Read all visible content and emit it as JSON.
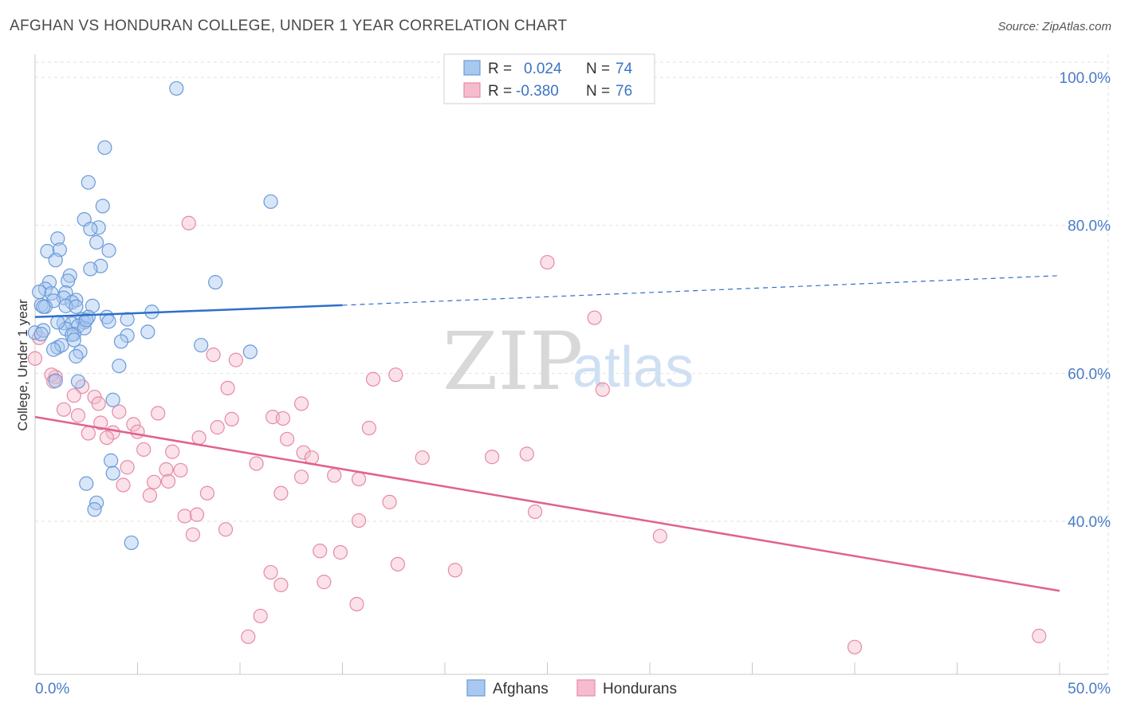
{
  "title": "AFGHAN VS HONDURAN COLLEGE, UNDER 1 YEAR CORRELATION CHART",
  "source": "Source: ZipAtlas.com",
  "watermark": {
    "zip": "ZIP",
    "atlas": "atlas"
  },
  "colors": {
    "afghans_fill": "#a9c8f0",
    "afghans_stroke": "#6a9ad8",
    "afghans_line": "#2f6fca",
    "hondurans_fill": "#f6bccd",
    "hondurans_stroke": "#e58aa8",
    "hondurans_line": "#e0628e",
    "grid": "#e2e2e2",
    "tick_label": "#4a7cc9"
  },
  "legend": {
    "rows": [
      {
        "r_label": "R =",
        "r_value": "0.024",
        "n_label": "N =",
        "n_value": "74"
      },
      {
        "r_label": "R =",
        "r_value": "-0.380",
        "n_label": "N =",
        "n_value": "76"
      }
    ]
  },
  "bottom_legend": [
    "Afghans",
    "Hondurans"
  ],
  "chart_data": {
    "type": "scatter",
    "title": "AFGHAN VS HONDURAN COLLEGE, UNDER 1 YEAR CORRELATION CHART",
    "xlabel": "",
    "ylabel": "College, Under 1 year",
    "xlim": [
      0,
      50
    ],
    "ylim": [
      22,
      103
    ],
    "x_tick_labels": [
      "0.0%",
      "50.0%"
    ],
    "y_ticks": [
      40,
      60,
      80,
      100
    ],
    "y_tick_labels": [
      "40.0%",
      "60.0%",
      "80.0%",
      "100.0%"
    ],
    "grid": true,
    "legend_position": "top-center",
    "series": [
      {
        "name": "Afghans",
        "r": 0.024,
        "n": 74,
        "trend": {
          "x0": 0,
          "y0": 67.6,
          "x1": 15,
          "y1": 69.2,
          "x_dash_end": 50,
          "y_dash_end": 73.2
        },
        "points": [
          [
            6.9,
            98.5
          ],
          [
            3.4,
            90.5
          ],
          [
            11.5,
            83.2
          ],
          [
            2.6,
            85.8
          ],
          [
            3.3,
            82.6
          ],
          [
            2.4,
            80.8
          ],
          [
            3.1,
            79.7
          ],
          [
            2.7,
            79.5
          ],
          [
            1.1,
            78.2
          ],
          [
            3.0,
            77.7
          ],
          [
            0.6,
            76.5
          ],
          [
            1.2,
            76.7
          ],
          [
            3.6,
            76.6
          ],
          [
            1.0,
            75.3
          ],
          [
            3.2,
            74.5
          ],
          [
            2.7,
            74.1
          ],
          [
            8.8,
            72.3
          ],
          [
            1.7,
            73.2
          ],
          [
            1.6,
            72.5
          ],
          [
            0.7,
            72.3
          ],
          [
            0.5,
            71.4
          ],
          [
            0.2,
            71.0
          ],
          [
            0.8,
            70.8
          ],
          [
            1.5,
            70.9
          ],
          [
            1.4,
            70.2
          ],
          [
            0.9,
            69.8
          ],
          [
            2.0,
            69.9
          ],
          [
            1.8,
            69.6
          ],
          [
            0.3,
            69.2
          ],
          [
            0.5,
            69.0
          ],
          [
            1.5,
            69.1
          ],
          [
            2.0,
            69.0
          ],
          [
            2.8,
            69.1
          ],
          [
            5.7,
            68.3
          ],
          [
            2.3,
            67.3
          ],
          [
            2.4,
            66.9
          ],
          [
            2.6,
            67.6
          ],
          [
            3.5,
            67.6
          ],
          [
            4.5,
            67.3
          ],
          [
            3.6,
            67.0
          ],
          [
            1.4,
            66.8
          ],
          [
            1.8,
            66.7
          ],
          [
            2.1,
            66.4
          ],
          [
            2.4,
            66.1
          ],
          [
            1.5,
            66.0
          ],
          [
            1.9,
            65.3
          ],
          [
            1.8,
            65.2
          ],
          [
            4.5,
            65.1
          ],
          [
            5.5,
            65.6
          ],
          [
            4.2,
            64.3
          ],
          [
            1.9,
            64.5
          ],
          [
            0.0,
            65.5
          ],
          [
            0.4,
            65.8
          ],
          [
            1.1,
            63.5
          ],
          [
            1.3,
            63.8
          ],
          [
            0.9,
            63.2
          ],
          [
            8.1,
            63.8
          ],
          [
            10.5,
            62.9
          ],
          [
            2.2,
            62.9
          ],
          [
            2.0,
            62.3
          ],
          [
            4.1,
            61.0
          ],
          [
            2.1,
            58.9
          ],
          [
            1.0,
            59.0
          ],
          [
            3.8,
            56.4
          ],
          [
            3.7,
            48.2
          ],
          [
            3.8,
            46.5
          ],
          [
            2.5,
            45.1
          ],
          [
            3.0,
            42.5
          ],
          [
            2.9,
            41.6
          ],
          [
            4.7,
            37.1
          ],
          [
            0.4,
            69.0
          ],
          [
            0.3,
            65.3
          ],
          [
            2.5,
            67.2
          ],
          [
            1.1,
            66.9
          ]
        ]
      },
      {
        "name": "Hondurans",
        "r": -0.38,
        "n": 76,
        "trend": {
          "x0": 0,
          "y0": 54.1,
          "x1": 50,
          "y1": 30.6
        },
        "points": [
          [
            0.0,
            62.0
          ],
          [
            0.2,
            64.8
          ],
          [
            1.0,
            59.5
          ],
          [
            0.8,
            59.8
          ],
          [
            0.9,
            58.9
          ],
          [
            2.3,
            58.2
          ],
          [
            1.9,
            57.0
          ],
          [
            2.9,
            56.8
          ],
          [
            3.1,
            55.9
          ],
          [
            1.4,
            55.1
          ],
          [
            2.1,
            54.3
          ],
          [
            4.1,
            54.8
          ],
          [
            6.0,
            54.6
          ],
          [
            3.2,
            53.3
          ],
          [
            4.8,
            53.1
          ],
          [
            2.6,
            51.9
          ],
          [
            3.8,
            52.0
          ],
          [
            3.5,
            51.3
          ],
          [
            5.0,
            52.1
          ],
          [
            8.0,
            51.3
          ],
          [
            8.9,
            52.7
          ],
          [
            9.6,
            53.8
          ],
          [
            11.6,
            54.1
          ],
          [
            12.1,
            53.9
          ],
          [
            12.3,
            51.1
          ],
          [
            13.1,
            49.3
          ],
          [
            13.5,
            48.6
          ],
          [
            16.3,
            52.6
          ],
          [
            18.9,
            48.6
          ],
          [
            5.3,
            49.7
          ],
          [
            6.7,
            49.4
          ],
          [
            4.5,
            47.3
          ],
          [
            6.4,
            47.0
          ],
          [
            7.1,
            46.9
          ],
          [
            10.8,
            47.8
          ],
          [
            13.0,
            46.0
          ],
          [
            14.6,
            46.2
          ],
          [
            15.8,
            45.7
          ],
          [
            4.3,
            44.9
          ],
          [
            5.8,
            45.3
          ],
          [
            6.5,
            45.4
          ],
          [
            5.6,
            43.5
          ],
          [
            8.4,
            43.8
          ],
          [
            12.0,
            43.8
          ],
          [
            17.3,
            42.6
          ],
          [
            24.4,
            41.3
          ],
          [
            7.3,
            40.7
          ],
          [
            7.9,
            40.9
          ],
          [
            15.8,
            40.1
          ],
          [
            9.3,
            38.9
          ],
          [
            7.7,
            38.2
          ],
          [
            30.5,
            38.0
          ],
          [
            13.9,
            36.0
          ],
          [
            14.9,
            35.8
          ],
          [
            17.7,
            34.2
          ],
          [
            20.5,
            33.4
          ],
          [
            11.5,
            33.1
          ],
          [
            12.0,
            31.4
          ],
          [
            14.1,
            31.8
          ],
          [
            15.7,
            28.8
          ],
          [
            11.0,
            27.2
          ],
          [
            10.4,
            24.4
          ],
          [
            40.0,
            23.0
          ],
          [
            49.0,
            24.5
          ],
          [
            7.5,
            80.3
          ],
          [
            25.0,
            75.0
          ],
          [
            27.3,
            67.5
          ],
          [
            8.7,
            62.5
          ],
          [
            9.8,
            61.8
          ],
          [
            16.5,
            59.2
          ],
          [
            17.6,
            59.8
          ],
          [
            9.4,
            58.0
          ],
          [
            27.7,
            57.8
          ],
          [
            13.0,
            55.9
          ],
          [
            22.3,
            48.7
          ],
          [
            24.0,
            49.1
          ]
        ]
      }
    ]
  }
}
